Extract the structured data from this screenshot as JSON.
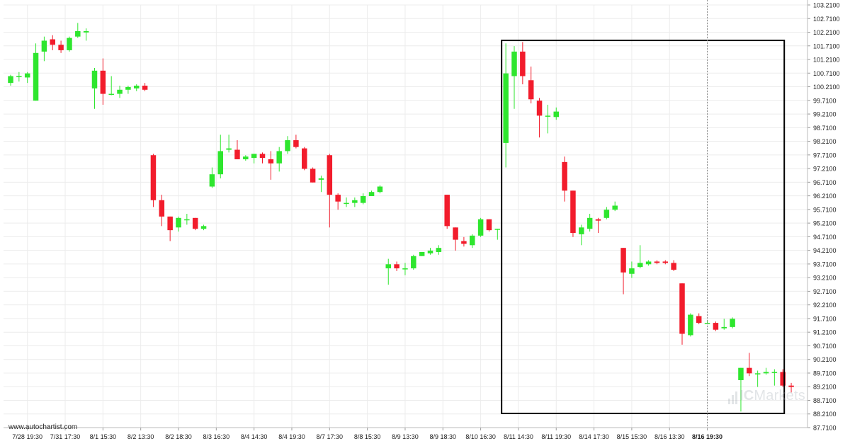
{
  "chart_data": {
    "type": "candlestick",
    "y_ticks": [
      "103.2100",
      "102.7100",
      "102.2100",
      "101.7100",
      "101.2100",
      "100.7100",
      "100.2100",
      "99.7100",
      "99.2100",
      "98.7100",
      "98.2100",
      "97.7100",
      "97.2100",
      "96.7100",
      "96.2100",
      "95.7100",
      "95.2100",
      "94.7100",
      "94.2100",
      "93.7100",
      "93.2100",
      "92.7100",
      "92.2100",
      "91.7100",
      "91.2100",
      "90.7100",
      "90.2100",
      "89.7100",
      "89.2100",
      "88.7100",
      "88.2100",
      "87.7100"
    ],
    "ylim": [
      87.71,
      103.21
    ],
    "x_ticks": [
      {
        "label": "7/28 19:30",
        "i": 2
      },
      {
        "label": "7/31 17:30",
        "i": 6.5
      },
      {
        "label": "8/1 15:30",
        "i": 11
      },
      {
        "label": "8/2 13:30",
        "i": 15.5
      },
      {
        "label": "8/2 18:30",
        "i": 20
      },
      {
        "label": "8/3 16:30",
        "i": 24.5
      },
      {
        "label": "8/4 14:30",
        "i": 29
      },
      {
        "label": "8/4 19:30",
        "i": 33.5
      },
      {
        "label": "8/7 17:30",
        "i": 38
      },
      {
        "label": "8/8 15:30",
        "i": 42.5
      },
      {
        "label": "8/9 13:30",
        "i": 47
      },
      {
        "label": "8/9 18:30",
        "i": 51.5
      },
      {
        "label": "8/10 16:30",
        "i": 56
      },
      {
        "label": "8/11 14:30",
        "i": 60.5
      },
      {
        "label": "8/11 19:30",
        "i": 65
      },
      {
        "label": "8/14 17:30",
        "i": 69.5
      },
      {
        "label": "8/15 15:30",
        "i": 74
      },
      {
        "label": "8/16 13:30",
        "i": 78.5
      },
      {
        "label": "8/16 19:30",
        "i": 83,
        "bold": true
      }
    ],
    "candles": [
      {
        "o": 100.35,
        "h": 100.65,
        "l": 100.25,
        "c": 100.6
      },
      {
        "o": 100.6,
        "h": 100.75,
        "l": 100.4,
        "c": 100.6
      },
      {
        "o": 100.55,
        "h": 100.75,
        "l": 100.35,
        "c": 100.7
      },
      {
        "o": 99.7,
        "h": 101.8,
        "l": 99.7,
        "c": 101.45
      },
      {
        "o": 101.5,
        "h": 102.05,
        "l": 101.15,
        "c": 101.9
      },
      {
        "o": 101.95,
        "h": 102.1,
        "l": 101.55,
        "c": 101.75
      },
      {
        "o": 101.75,
        "h": 101.9,
        "l": 101.45,
        "c": 101.55
      },
      {
        "o": 101.55,
        "h": 102.05,
        "l": 101.5,
        "c": 102.0
      },
      {
        "o": 102.05,
        "h": 102.55,
        "l": 102.0,
        "c": 102.25
      },
      {
        "o": 102.2,
        "h": 102.35,
        "l": 101.9,
        "c": 102.25
      },
      {
        "o": 100.15,
        "h": 100.9,
        "l": 99.4,
        "c": 100.8
      },
      {
        "o": 100.8,
        "h": 101.25,
        "l": 99.55,
        "c": 99.95
      },
      {
        "o": 99.95,
        "h": 100.6,
        "l": 99.9,
        "c": 99.95
      },
      {
        "o": 99.95,
        "h": 100.25,
        "l": 99.8,
        "c": 100.1
      },
      {
        "o": 100.1,
        "h": 100.25,
        "l": 99.95,
        "c": 100.2
      },
      {
        "o": 100.15,
        "h": 100.3,
        "l": 100.05,
        "c": 100.25
      },
      {
        "o": 100.25,
        "h": 100.35,
        "l": 100.05,
        "c": 100.1
      },
      {
        "o": 97.7,
        "h": 97.75,
        "l": 95.8,
        "c": 96.05
      },
      {
        "o": 96.05,
        "h": 96.25,
        "l": 95.1,
        "c": 95.45
      },
      {
        "o": 95.45,
        "h": 95.45,
        "l": 94.55,
        "c": 94.95
      },
      {
        "o": 95.05,
        "h": 95.45,
        "l": 94.9,
        "c": 95.4
      },
      {
        "o": 95.35,
        "h": 95.55,
        "l": 95.15,
        "c": 95.35
      },
      {
        "o": 95.4,
        "h": 95.4,
        "l": 94.95,
        "c": 95.0
      },
      {
        "o": 95.0,
        "h": 95.15,
        "l": 94.95,
        "c": 95.1
      },
      {
        "o": 96.55,
        "h": 97.25,
        "l": 96.5,
        "c": 97.0
      },
      {
        "o": 97.0,
        "h": 98.45,
        "l": 96.85,
        "c": 97.85
      },
      {
        "o": 97.9,
        "h": 98.45,
        "l": 97.8,
        "c": 97.95
      },
      {
        "o": 97.9,
        "h": 98.25,
        "l": 97.55,
        "c": 97.55
      },
      {
        "o": 97.55,
        "h": 97.7,
        "l": 97.5,
        "c": 97.65
      },
      {
        "o": 97.6,
        "h": 97.75,
        "l": 97.4,
        "c": 97.75
      },
      {
        "o": 97.75,
        "h": 97.8,
        "l": 97.4,
        "c": 97.6
      },
      {
        "o": 97.55,
        "h": 97.85,
        "l": 96.8,
        "c": 97.4
      },
      {
        "o": 97.4,
        "h": 98.0,
        "l": 97.1,
        "c": 97.85
      },
      {
        "o": 97.85,
        "h": 98.4,
        "l": 97.75,
        "c": 98.25
      },
      {
        "o": 98.25,
        "h": 98.45,
        "l": 97.95,
        "c": 98.0
      },
      {
        "o": 97.95,
        "h": 98.0,
        "l": 97.15,
        "c": 97.2
      },
      {
        "o": 97.2,
        "h": 97.25,
        "l": 96.7,
        "c": 96.7
      },
      {
        "o": 96.8,
        "h": 96.95,
        "l": 96.35,
        "c": 96.85
      },
      {
        "o": 97.7,
        "h": 97.75,
        "l": 95.05,
        "c": 96.25
      },
      {
        "o": 96.25,
        "h": 96.3,
        "l": 95.7,
        "c": 96.0
      },
      {
        "o": 95.95,
        "h": 96.15,
        "l": 95.8,
        "c": 95.95
      },
      {
        "o": 95.95,
        "h": 96.15,
        "l": 95.8,
        "c": 96.05
      },
      {
        "o": 95.95,
        "h": 96.3,
        "l": 95.9,
        "c": 96.2
      },
      {
        "o": 96.2,
        "h": 96.4,
        "l": 96.2,
        "c": 96.35
      },
      {
        "o": 96.35,
        "h": 96.6,
        "l": 96.3,
        "c": 96.55
      },
      {
        "o": 93.55,
        "h": 93.9,
        "l": 92.95,
        "c": 93.7
      },
      {
        "o": 93.7,
        "h": 93.8,
        "l": 93.45,
        "c": 93.55
      },
      {
        "o": 93.55,
        "h": 93.75,
        "l": 93.3,
        "c": 93.55
      },
      {
        "o": 93.55,
        "h": 94.05,
        "l": 93.5,
        "c": 94.0
      },
      {
        "o": 94.0,
        "h": 94.15,
        "l": 94.0,
        "c": 94.15
      },
      {
        "o": 94.1,
        "h": 94.3,
        "l": 94.05,
        "c": 94.2
      },
      {
        "o": 94.15,
        "h": 94.4,
        "l": 94.05,
        "c": 94.3
      },
      {
        "o": 96.25,
        "h": 96.25,
        "l": 95.0,
        "c": 95.1
      },
      {
        "o": 95.05,
        "h": 95.05,
        "l": 94.2,
        "c": 94.6
      },
      {
        "o": 94.55,
        "h": 94.7,
        "l": 94.35,
        "c": 94.45
      },
      {
        "o": 94.4,
        "h": 94.8,
        "l": 94.3,
        "c": 94.75
      },
      {
        "o": 94.75,
        "h": 95.4,
        "l": 94.7,
        "c": 95.35
      },
      {
        "o": 95.35,
        "h": 95.35,
        "l": 94.9,
        "c": 94.95
      },
      {
        "o": 95.0,
        "h": 95.0,
        "l": 94.6,
        "c": 95.0
      },
      {
        "o": 98.15,
        "h": 101.8,
        "l": 97.25,
        "c": 100.7
      },
      {
        "o": 100.6,
        "h": 101.7,
        "l": 99.4,
        "c": 101.5
      },
      {
        "o": 101.5,
        "h": 101.85,
        "l": 100.3,
        "c": 100.6
      },
      {
        "o": 100.45,
        "h": 100.95,
        "l": 99.6,
        "c": 99.75
      },
      {
        "o": 99.7,
        "h": 99.8,
        "l": 98.35,
        "c": 99.15
      },
      {
        "o": 99.15,
        "h": 99.55,
        "l": 98.5,
        "c": 99.15
      },
      {
        "o": 99.1,
        "h": 99.45,
        "l": 99.0,
        "c": 99.3
      },
      {
        "o": 97.45,
        "h": 97.65,
        "l": 96.0,
        "c": 96.4
      },
      {
        "o": 96.4,
        "h": 96.4,
        "l": 94.7,
        "c": 94.85
      },
      {
        "o": 94.8,
        "h": 95.15,
        "l": 94.4,
        "c": 95.05
      },
      {
        "o": 95.0,
        "h": 95.55,
        "l": 94.9,
        "c": 95.4
      },
      {
        "o": 95.35,
        "h": 95.4,
        "l": 94.85,
        "c": 95.3
      },
      {
        "o": 95.4,
        "h": 95.8,
        "l": 95.35,
        "c": 95.7
      },
      {
        "o": 95.7,
        "h": 96.0,
        "l": 95.65,
        "c": 95.85
      },
      {
        "o": 94.3,
        "h": 94.3,
        "l": 92.6,
        "c": 93.4
      },
      {
        "o": 93.35,
        "h": 93.8,
        "l": 93.2,
        "c": 93.55
      },
      {
        "o": 93.6,
        "h": 94.4,
        "l": 93.55,
        "c": 93.75
      },
      {
        "o": 93.7,
        "h": 93.85,
        "l": 93.65,
        "c": 93.8
      },
      {
        "o": 93.8,
        "h": 93.85,
        "l": 93.7,
        "c": 93.75
      },
      {
        "o": 93.8,
        "h": 93.85,
        "l": 93.7,
        "c": 93.75
      },
      {
        "o": 93.75,
        "h": 93.85,
        "l": 93.45,
        "c": 93.5
      },
      {
        "o": 93.0,
        "h": 93.0,
        "l": 90.75,
        "c": 91.15
      },
      {
        "o": 91.1,
        "h": 91.9,
        "l": 91.05,
        "c": 91.85
      },
      {
        "o": 91.8,
        "h": 91.9,
        "l": 91.5,
        "c": 91.55
      },
      {
        "o": 91.55,
        "h": 91.65,
        "l": 91.5,
        "c": 91.55
      },
      {
        "o": 91.55,
        "h": 91.6,
        "l": 91.25,
        "c": 91.3
      },
      {
        "o": 91.35,
        "h": 91.7,
        "l": 91.3,
        "c": 91.4
      },
      {
        "o": 91.4,
        "h": 91.75,
        "l": 91.35,
        "c": 91.7
      },
      {
        "o": 89.45,
        "h": 89.9,
        "l": 88.3,
        "c": 89.9
      },
      {
        "o": 89.9,
        "h": 90.45,
        "l": 89.6,
        "c": 89.7
      },
      {
        "o": 89.7,
        "h": 89.8,
        "l": 89.2,
        "c": 89.7
      },
      {
        "o": 89.7,
        "h": 89.9,
        "l": 89.65,
        "c": 89.75
      },
      {
        "o": 89.75,
        "h": 89.85,
        "l": 89.25,
        "c": 89.75
      },
      {
        "o": 89.75,
        "h": 89.85,
        "l": 89.2,
        "c": 89.25
      },
      {
        "o": 89.25,
        "h": 89.35,
        "l": 89.0,
        "c": 89.2
      }
    ],
    "rectangle": {
      "y_top": 101.91,
      "y_bottom": 88.23
    },
    "colors": {
      "up": "#2ee62e",
      "down": "#f21c2c",
      "grid": "#ececec",
      "text": "#222222",
      "box": "#000000"
    }
  },
  "watermark": {
    "source": "www.autochartist.com",
    "brand_a": "IC",
    "brand_b": "Markets"
  }
}
